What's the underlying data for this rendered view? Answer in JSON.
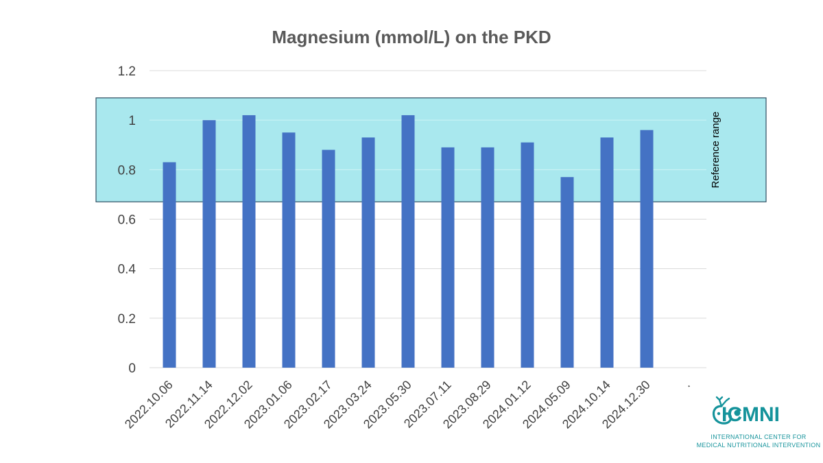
{
  "chart_data": {
    "type": "bar",
    "title": "Magnesium (mmol/L) on the PKD",
    "xlabel": "",
    "ylabel": "",
    "categories": [
      "2022.10.06",
      "2022.11.14",
      "2022.12.02",
      "2023.01.06",
      "2023.02.17",
      "2023.03.24",
      "2023.05.30",
      "2023.07.11",
      "2023.08.29",
      "2024.01.12",
      "2024.05.09",
      "2024.10.14",
      "2024.12.30",
      "."
    ],
    "values": [
      0.83,
      1.0,
      1.02,
      0.95,
      0.88,
      0.93,
      1.02,
      0.89,
      0.89,
      0.91,
      0.77,
      0.93,
      0.96,
      null
    ],
    "ylim": [
      0,
      1.2
    ],
    "yticks": [
      "0",
      "0.2",
      "0.4",
      "0.6",
      "0.8",
      "1",
      "1.2"
    ],
    "grid": true,
    "reference_range": {
      "label": "Reference range",
      "low": 0.67,
      "high": 1.09
    },
    "colors": {
      "bar": "#4472C4",
      "reference_fill": "#A9E8EE",
      "reference_stroke": "#2E4D60",
      "grid": "#D9D9D9",
      "title": "#595959"
    }
  },
  "logo": {
    "name": "ICMNI",
    "subtitle_line1": "INTERNATIONAL CENTER FOR",
    "subtitle_line2": "MEDICAL NUTRITIONAL INTERVENTION",
    "color": "#15939B"
  }
}
